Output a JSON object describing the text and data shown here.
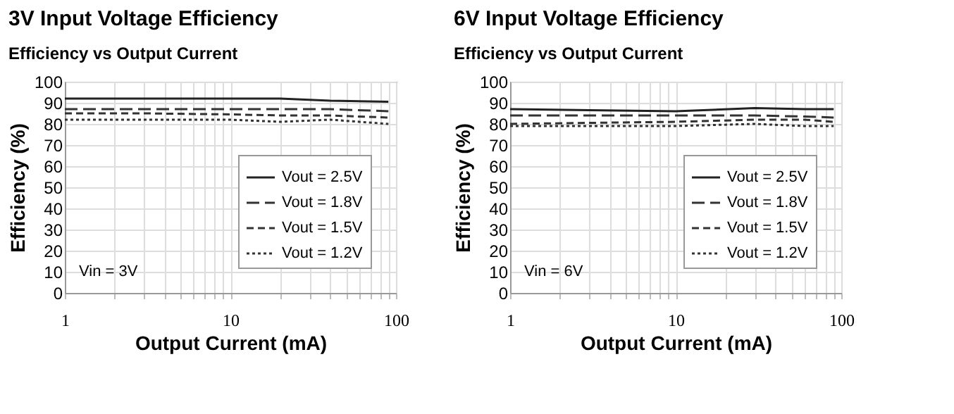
{
  "chart_data": [
    {
      "type": "line",
      "title": "3V Input Voltage Efficiency",
      "subtitle": "Efficiency vs Output Current",
      "xlabel": "Output Current (mA)",
      "ylabel": "Efficiency (%)",
      "log": "x",
      "grid": true,
      "legend": "bottom right",
      "marker": "none",
      "xlim": [
        1,
        100
      ],
      "xticks": [
        1,
        {
          "value": 2,
          "label": null
        },
        {
          "value": 3,
          "label": null
        },
        {
          "value": 4,
          "label": null
        },
        {
          "value": 5,
          "label": null
        },
        {
          "value": 6,
          "label": null
        },
        {
          "value": 7,
          "label": null
        },
        {
          "value": 8,
          "label": null
        },
        {
          "value": 9,
          "label": null
        },
        10,
        {
          "value": 20,
          "label": null
        },
        {
          "value": 30,
          "label": null
        },
        {
          "value": 40,
          "label": null
        },
        {
          "value": 50,
          "label": null
        },
        {
          "value": 60,
          "label": null
        },
        {
          "value": 70,
          "label": null
        },
        {
          "value": 80,
          "label": null
        },
        {
          "value": 90,
          "label": null
        },
        100
      ],
      "ylim": [
        0,
        100
      ],
      "yticks": [
        0,
        10,
        20,
        30,
        40,
        50,
        60,
        70,
        80,
        90,
        100
      ],
      "x": [
        1,
        3,
        10,
        20,
        40,
        90
      ],
      "series": [
        {
          "name": "Vout = 2.5V",
          "color": "#222222",
          "line_style": "solid",
          "values": [
            92,
            92,
            92,
            92,
            91,
            90.5
          ]
        },
        {
          "name": "Vout = 1.8V",
          "color": "#333333",
          "line_style": "longdash",
          "values": [
            87,
            87,
            87,
            87,
            87,
            86
          ]
        },
        {
          "name": "Vout = 1.5V",
          "color": "#333333",
          "line_style": "dashed",
          "values": [
            85,
            85,
            84.5,
            84,
            84,
            83
          ]
        },
        {
          "name": "Vout = 1.2V",
          "color": "#333333",
          "line_style": "dotted",
          "values": [
            82,
            82,
            82,
            81,
            82,
            80
          ]
        }
      ],
      "annotations": [
        "Vin = 3V"
      ]
    },
    {
      "type": "line",
      "title": "6V Input Voltage Efficiency",
      "subtitle": "Efficiency vs Output Current",
      "xlabel": "Output Current (mA)",
      "ylabel": "Efficiency (%)",
      "log": "x",
      "grid": true,
      "legend": "bottom right",
      "marker": "none",
      "xlim": [
        1,
        100
      ],
      "xticks": [
        1,
        {
          "value": 2,
          "label": null
        },
        {
          "value": 3,
          "label": null
        },
        {
          "value": 4,
          "label": null
        },
        {
          "value": 5,
          "label": null
        },
        {
          "value": 6,
          "label": null
        },
        {
          "value": 7,
          "label": null
        },
        {
          "value": 8,
          "label": null
        },
        {
          "value": 9,
          "label": null
        },
        10,
        {
          "value": 20,
          "label": null
        },
        {
          "value": 30,
          "label": null
        },
        {
          "value": 40,
          "label": null
        },
        {
          "value": 50,
          "label": null
        },
        {
          "value": 60,
          "label": null
        },
        {
          "value": 70,
          "label": null
        },
        {
          "value": 80,
          "label": null
        },
        {
          "value": 90,
          "label": null
        },
        100
      ],
      "ylim": [
        0,
        100
      ],
      "yticks": [
        0,
        10,
        20,
        30,
        40,
        50,
        60,
        70,
        80,
        90,
        100
      ],
      "x": [
        1,
        3,
        10,
        30,
        60,
        90
      ],
      "series": [
        {
          "name": "Vout = 2.5V",
          "color": "#222222",
          "line_style": "solid",
          "values": [
            87,
            86.5,
            86,
            87.5,
            87,
            87
          ]
        },
        {
          "name": "Vout = 1.8V",
          "color": "#333333",
          "line_style": "longdash",
          "values": [
            84,
            84,
            84,
            84,
            83.5,
            83
          ]
        },
        {
          "name": "Vout = 1.5V",
          "color": "#333333",
          "line_style": "dashed",
          "values": [
            80,
            80.5,
            81,
            82,
            82,
            81
          ]
        },
        {
          "name": "Vout = 1.2V",
          "color": "#333333",
          "line_style": "dotted",
          "values": [
            79,
            79,
            79,
            80,
            79,
            79
          ]
        }
      ],
      "annotations": [
        "Vin = 6V"
      ]
    }
  ]
}
